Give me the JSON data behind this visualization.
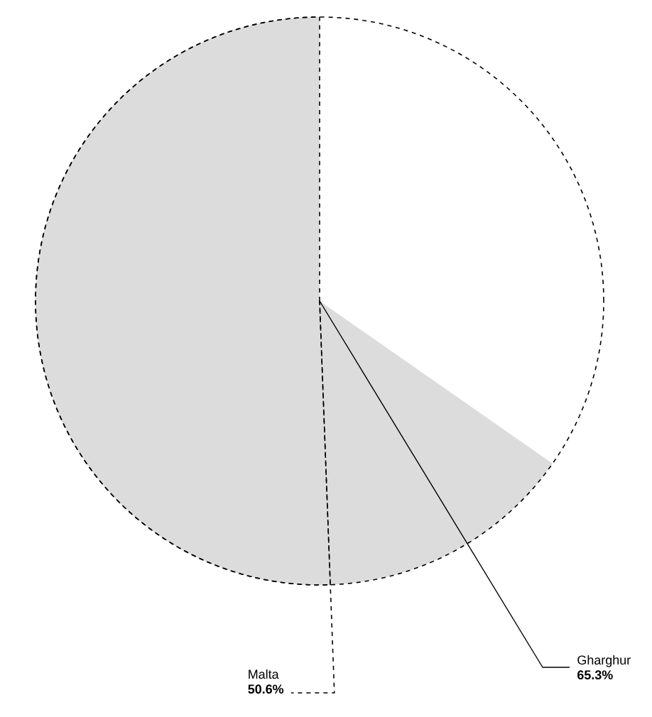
{
  "chart_data": {
    "type": "pie",
    "categories": [
      "Gharghur",
      "Malta"
    ],
    "values": [
      65.3,
      50.6
    ],
    "value_labels": [
      "65.3%",
      "50.6%"
    ],
    "colors": [
      "#dcdcdc",
      "#dcdcdc"
    ]
  }
}
